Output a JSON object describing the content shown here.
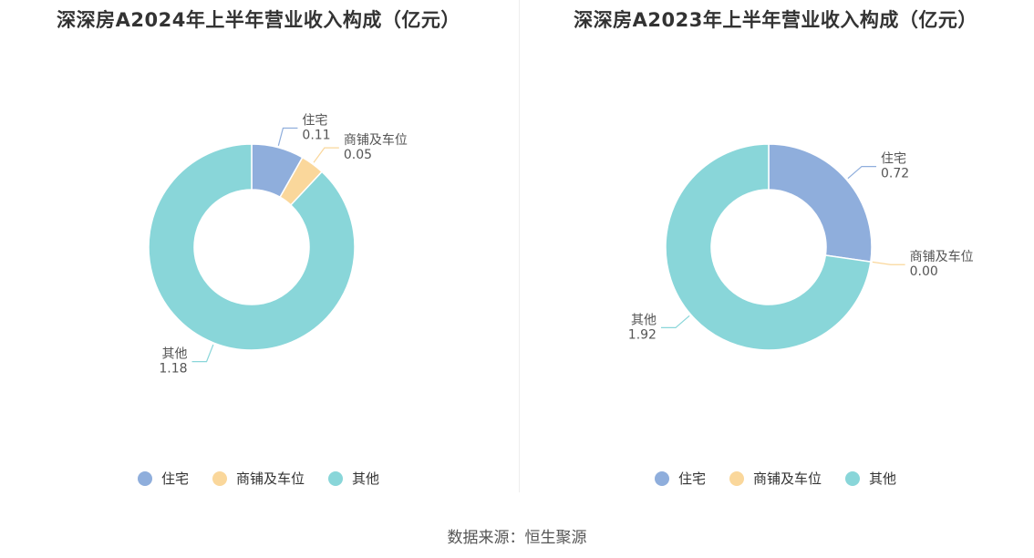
{
  "colors": {
    "residential": "#8FAEDC",
    "commercial": "#FAD79B",
    "other": "#89D6D9"
  },
  "legend": [
    "住宅",
    "商铺及车位",
    "其他"
  ],
  "source": "数据来源：恒生聚源",
  "chart_data": [
    {
      "type": "pie",
      "title": "深深房A2024年上半年营业收入构成（亿元）",
      "categories": [
        "住宅",
        "商铺及车位",
        "其他"
      ],
      "values": [
        0.11,
        0.05,
        1.18
      ],
      "labels": [
        "0.11",
        "0.05",
        "1.18"
      ],
      "legend_position": "bottom"
    },
    {
      "type": "pie",
      "title": "深深房A2023年上半年营业收入构成（亿元）",
      "categories": [
        "住宅",
        "商铺及车位",
        "其他"
      ],
      "values": [
        0.72,
        0.0,
        1.92
      ],
      "labels": [
        "0.72",
        "0.00",
        "1.92"
      ],
      "legend_position": "bottom"
    }
  ]
}
